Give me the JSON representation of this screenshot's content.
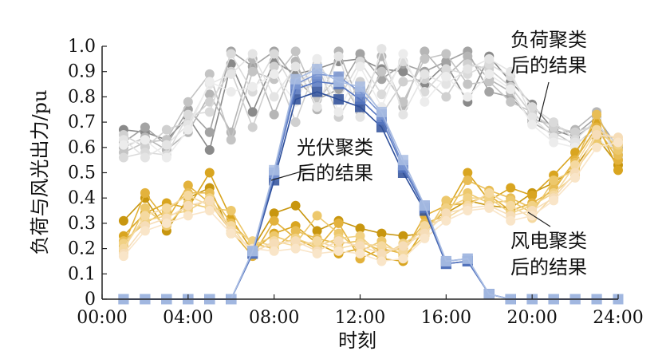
{
  "chart_data": {
    "type": "line",
    "xlabel": "时刻",
    "ylabel": "负荷与风光出力/pu",
    "xlim": [
      0,
      24
    ],
    "ylim": [
      0,
      1.0
    ],
    "x_ticks": [
      "00:00",
      "04:00",
      "08:00",
      "12:00",
      "16:00",
      "20:00",
      "24:00"
    ],
    "y_ticks": [
      "0",
      "0.1",
      "0.2",
      "0.3",
      "0.4",
      "0.5",
      "0.6",
      "0.7",
      "0.8",
      "0.9",
      "1.0"
    ],
    "grid": false,
    "x": [
      1,
      2,
      3,
      4,
      5,
      6,
      7,
      8,
      9,
      10,
      11,
      12,
      13,
      14,
      15,
      16,
      17,
      18,
      19,
      20,
      21,
      22,
      23,
      24
    ],
    "annotations": [
      {
        "line1": "负荷聚类",
        "line2": "后的结果",
        "points_to": "load"
      },
      {
        "line1": "光伏聚类",
        "line2": "后的结果",
        "points_to": "pv"
      },
      {
        "line1": "风电聚类",
        "line2": "后的结果",
        "points_to": "wind"
      }
    ],
    "series": [
      {
        "group": "load",
        "color": "#8a8a8a",
        "values": [
          0.67,
          0.66,
          0.63,
          0.72,
          0.59,
          0.93,
          0.74,
          0.94,
          0.89,
          0.91,
          0.94,
          0.95,
          0.91,
          0.9,
          0.85,
          0.93,
          0.78,
          0.96,
          0.86,
          0.77,
          0.67,
          0.64,
          0.7,
          0.57
        ]
      },
      {
        "group": "load",
        "color": "#a3a3a3",
        "values": [
          0.62,
          0.68,
          0.61,
          0.75,
          0.66,
          0.98,
          0.92,
          0.98,
          0.87,
          0.79,
          0.83,
          0.97,
          0.87,
          0.93,
          0.9,
          0.94,
          0.98,
          0.82,
          0.8,
          0.71,
          0.69,
          0.65,
          0.72,
          0.6
        ]
      },
      {
        "group": "load",
        "color": "#b6b6b6",
        "values": [
          0.6,
          0.64,
          0.59,
          0.66,
          0.81,
          0.66,
          0.95,
          0.73,
          0.94,
          0.75,
          0.98,
          0.77,
          0.96,
          0.76,
          0.98,
          0.88,
          0.96,
          0.87,
          0.82,
          0.7,
          0.65,
          0.67,
          0.74,
          0.55
        ]
      },
      {
        "group": "load",
        "color": "#c4c4c4",
        "values": [
          0.58,
          0.62,
          0.63,
          0.78,
          0.89,
          0.63,
          0.9,
          0.87,
          0.98,
          0.79,
          0.88,
          0.74,
          0.9,
          0.78,
          0.95,
          0.97,
          0.85,
          0.86,
          0.78,
          0.74,
          0.66,
          0.61,
          0.68,
          0.59
        ]
      },
      {
        "group": "load",
        "color": "#d0d0d0",
        "values": [
          0.65,
          0.6,
          0.67,
          0.7,
          0.78,
          0.9,
          0.68,
          0.92,
          0.7,
          0.93,
          0.72,
          0.86,
          0.73,
          0.86,
          0.87,
          0.8,
          0.93,
          0.91,
          0.84,
          0.73,
          0.68,
          0.66,
          0.69,
          0.61
        ]
      },
      {
        "group": "load",
        "color": "#dadada",
        "values": [
          0.56,
          0.58,
          0.57,
          0.73,
          0.74,
          0.97,
          0.82,
          0.97,
          0.82,
          0.95,
          0.79,
          0.94,
          0.81,
          0.94,
          0.82,
          0.91,
          0.89,
          0.93,
          0.88,
          0.76,
          0.7,
          0.63,
          0.71,
          0.56
        ]
      },
      {
        "group": "load",
        "color": "#e4e4e4",
        "values": [
          0.63,
          0.56,
          0.61,
          0.69,
          0.85,
          0.89,
          0.97,
          0.8,
          0.92,
          0.76,
          0.96,
          0.72,
          0.99,
          0.73,
          0.89,
          0.85,
          0.91,
          0.95,
          0.9,
          0.72,
          0.64,
          0.62,
          0.66,
          0.58
        ]
      },
      {
        "group": "load",
        "color": "#ececec",
        "values": [
          0.61,
          0.63,
          0.56,
          0.67,
          0.86,
          0.82,
          0.84,
          0.89,
          0.78,
          0.95,
          0.74,
          0.92,
          0.76,
          0.97,
          0.78,
          0.88,
          0.8,
          0.89,
          0.83,
          0.69,
          0.62,
          0.6,
          0.65,
          0.54
        ]
      },
      {
        "group": "wind",
        "color": "#c8960f",
        "values": [
          0.31,
          0.4,
          0.27,
          0.4,
          0.44,
          0.26,
          0.2,
          0.34,
          0.37,
          0.27,
          0.31,
          0.28,
          0.26,
          0.25,
          0.26,
          0.34,
          0.39,
          0.37,
          0.36,
          0.42,
          0.46,
          0.52,
          0.64,
          0.53
        ]
      },
      {
        "group": "wind",
        "color": "#d9a520",
        "values": [
          0.25,
          0.34,
          0.38,
          0.36,
          0.5,
          0.32,
          0.19,
          0.26,
          0.29,
          0.22,
          0.18,
          0.2,
          0.16,
          0.15,
          0.28,
          0.35,
          0.5,
          0.39,
          0.44,
          0.41,
          0.49,
          0.58,
          0.7,
          0.51
        ]
      },
      {
        "group": "wind",
        "color": "#e3b23c",
        "values": [
          0.21,
          0.42,
          0.31,
          0.45,
          0.38,
          0.27,
          0.17,
          0.31,
          0.24,
          0.2,
          0.3,
          0.16,
          0.2,
          0.18,
          0.33,
          0.37,
          0.38,
          0.41,
          0.35,
          0.38,
          0.43,
          0.55,
          0.68,
          0.55
        ]
      },
      {
        "group": "wind",
        "color": "#e8bd55",
        "values": [
          0.23,
          0.3,
          0.35,
          0.42,
          0.42,
          0.3,
          0.22,
          0.2,
          0.27,
          0.24,
          0.22,
          0.23,
          0.19,
          0.2,
          0.3,
          0.33,
          0.47,
          0.43,
          0.4,
          0.36,
          0.44,
          0.54,
          0.73,
          0.57
        ]
      },
      {
        "group": "wind",
        "color": "#edc86c",
        "values": [
          0.19,
          0.36,
          0.29,
          0.38,
          0.36,
          0.35,
          0.21,
          0.25,
          0.22,
          0.33,
          0.26,
          0.19,
          0.23,
          0.17,
          0.25,
          0.39,
          0.42,
          0.38,
          0.39,
          0.34,
          0.47,
          0.51,
          0.62,
          0.59
        ]
      },
      {
        "group": "wind",
        "color": "#f1d184",
        "values": [
          0.22,
          0.31,
          0.33,
          0.35,
          0.4,
          0.28,
          0.23,
          0.21,
          0.24,
          0.21,
          0.24,
          0.25,
          0.17,
          0.22,
          0.27,
          0.36,
          0.4,
          0.4,
          0.34,
          0.37,
          0.42,
          0.49,
          0.66,
          0.61
        ]
      },
      {
        "group": "wind",
        "color": "#f5d9a0",
        "values": [
          0.2,
          0.33,
          0.36,
          0.41,
          0.37,
          0.29,
          0.18,
          0.23,
          0.21,
          0.23,
          0.2,
          0.22,
          0.21,
          0.19,
          0.29,
          0.32,
          0.37,
          0.42,
          0.37,
          0.32,
          0.41,
          0.53,
          0.67,
          0.63
        ]
      },
      {
        "group": "wind",
        "color": "#f6ddb8",
        "values": [
          0.18,
          0.29,
          0.32,
          0.37,
          0.39,
          0.27,
          0.19,
          0.22,
          0.23,
          0.19,
          0.23,
          0.21,
          0.18,
          0.21,
          0.26,
          0.34,
          0.36,
          0.37,
          0.33,
          0.35,
          0.4,
          0.5,
          0.65,
          0.64
        ]
      },
      {
        "group": "wind",
        "color": "#f9e5c8",
        "values": [
          0.17,
          0.27,
          0.3,
          0.33,
          0.35,
          0.26,
          0.2,
          0.19,
          0.2,
          0.18,
          0.19,
          0.18,
          0.15,
          0.16,
          0.24,
          0.31,
          0.35,
          0.36,
          0.31,
          0.33,
          0.39,
          0.48,
          0.6,
          0.62
        ]
      },
      {
        "group": "pv",
        "color": "#2e4f9a",
        "values": [
          0,
          0,
          0,
          0,
          0,
          0,
          0.18,
          0.47,
          0.79,
          0.82,
          0.79,
          0.76,
          0.68,
          0.5,
          0.35,
          0.14,
          0.15,
          0.02,
          0,
          0,
          0,
          0,
          0,
          0
        ]
      },
      {
        "group": "pv",
        "color": "#5575c0",
        "values": [
          0,
          0,
          0,
          0,
          0,
          0,
          0.18,
          0.49,
          0.83,
          0.86,
          0.85,
          0.79,
          0.71,
          0.52,
          0.36,
          0.14,
          0.15,
          0.02,
          0,
          0,
          0,
          0,
          0,
          0
        ]
      },
      {
        "group": "pv",
        "color": "#7b96d2",
        "values": [
          0,
          0,
          0,
          0,
          0,
          0,
          0.19,
          0.5,
          0.85,
          0.89,
          0.88,
          0.82,
          0.73,
          0.53,
          0.37,
          0.15,
          0.16,
          0.02,
          0,
          0,
          0,
          0,
          0,
          0
        ]
      },
      {
        "group": "pv",
        "color": "#a9bde3",
        "values": [
          0,
          0,
          0,
          0,
          0,
          0,
          0.19,
          0.51,
          0.87,
          0.91,
          0.86,
          0.84,
          0.74,
          0.55,
          0.37,
          0.15,
          0.16,
          0.02,
          0,
          0,
          0,
          0,
          0,
          0
        ]
      }
    ]
  }
}
